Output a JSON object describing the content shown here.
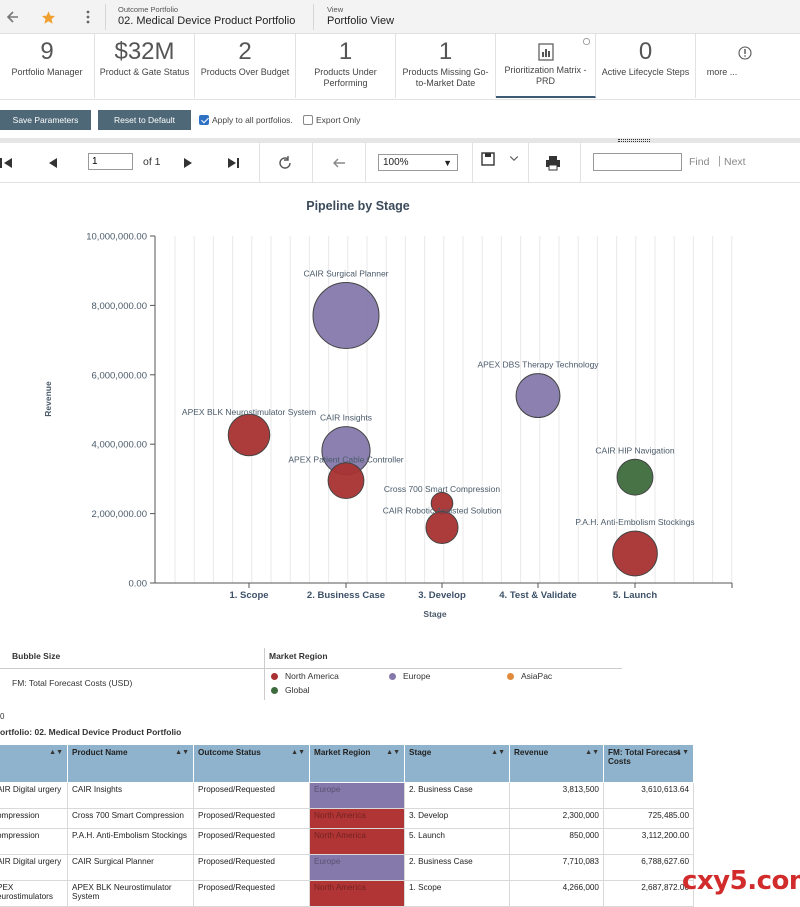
{
  "header": {
    "outcome_label": "Outcome Portfolio",
    "outcome_value": "02. Medical Device Product Portfolio",
    "view_label": "View",
    "view_value": "Portfolio View"
  },
  "kpis": [
    {
      "value": "9",
      "label": "Portfolio Manager"
    },
    {
      "value": "$32M",
      "label": "Product & Gate Status"
    },
    {
      "value": "2",
      "label": "Products Over Budget"
    },
    {
      "value": "1",
      "label": "Products Under Performing"
    },
    {
      "value": "1",
      "label": "Products Missing Go-to-Market Date"
    },
    {
      "value": "",
      "label": "Prioritization Matrix - PRD"
    },
    {
      "value": "0",
      "label": "Active Lifecycle Steps"
    },
    {
      "value": "",
      "label": "more ..."
    }
  ],
  "params": {
    "save_label": "Save Parameters",
    "reset_label": "Reset to Default",
    "apply_all_label": "Apply to all portfolios.",
    "export_only_label": "Export Only"
  },
  "report_toolbar": {
    "page_value": "1",
    "of_label": "of  1",
    "zoom": "100%",
    "find_label": "Find",
    "next_label": "Next"
  },
  "chart_data": {
    "type": "scatter",
    "title": "Pipeline by  Stage",
    "xlabel": "Stage",
    "ylabel": "Revenue",
    "categories": [
      "1. Scope",
      "2. Business Case",
      "3. Develop",
      "4. Test & Validate",
      "5. Launch"
    ],
    "ylim": [
      0,
      10000000
    ],
    "yticks": [
      "0.00",
      "2,000,000.00",
      "4,000,000.00",
      "6,000,000.00",
      "8,000,000.00",
      "10,000,000.00"
    ],
    "size_measure": "FM: Total Forecast Costs (USD)",
    "points": [
      {
        "name": "APEX BLK Neurostimulator System",
        "stage": 1,
        "revenue": 4266000,
        "size": 2687872,
        "region": "North America"
      },
      {
        "name": "CAIR Surgical Planner",
        "stage": 2,
        "revenue": 7710083,
        "size": 6788627.6,
        "region": "Europe"
      },
      {
        "name": "CAIR Insights",
        "stage": 2,
        "revenue": 3813500,
        "size": 3610613.64,
        "region": "Europe"
      },
      {
        "name": "APEX Patient Cable Controller",
        "stage": 2,
        "revenue": 2950000,
        "size": 2000000,
        "region": "North America"
      },
      {
        "name": "Cross 700 Smart Compression",
        "stage": 3,
        "revenue": 2300000,
        "size": 725485,
        "region": "North America"
      },
      {
        "name": "CAIR Robotic Assisted Solution",
        "stage": 3,
        "revenue": 1600000,
        "size": 1600000,
        "region": "North America"
      },
      {
        "name": "APEX DBS Therapy Technology",
        "stage": 4,
        "revenue": 5400000,
        "size": 3000000,
        "region": "Europe"
      },
      {
        "name": "CAIR HIP Navigation",
        "stage": 5,
        "revenue": 3050000,
        "size": 2000000,
        "region": "Global"
      },
      {
        "name": "P.A.H. Anti-Embolism Stockings",
        "stage": 5,
        "revenue": 850000,
        "size": 3112200,
        "region": "North America"
      }
    ],
    "region_colors": {
      "North America": "#a83232",
      "Europe": "#8579ab",
      "AsiaPac": "#e08a3c",
      "Global": "#3d6b3d"
    }
  },
  "legend": {
    "size_header": "Bubble Size",
    "size_value": "FM: Total Forecast Costs (USD)",
    "region_header": "Market Region",
    "regions": [
      "North America",
      "Europe",
      "AsiaPac",
      "Global"
    ]
  },
  "table": {
    "mark": "0",
    "title": "ortfolio: 02. Medical Device Product Portfolio",
    "headers": [
      "",
      "Product Name",
      "Outcome Status",
      "Market Region",
      "Stage",
      "Revenue",
      "FM: Total Forecast Costs"
    ],
    "rows": [
      [
        "AIR Digital urgery",
        "CAIR Insights",
        "Proposed/Requested",
        "Europe",
        "2. Business Case",
        "3,813,500",
        "3,610,613.64"
      ],
      [
        "ompression",
        "Cross 700 Smart Compression",
        "Proposed/Requested",
        "North America",
        "3. Develop",
        "2,300,000",
        "725,485.00"
      ],
      [
        "ompression",
        "P.A.H. Anti-Embolism Stockings",
        "Proposed/Requested",
        "North America",
        "5. Launch",
        "850,000",
        "3,112,200.00"
      ],
      [
        "AIR Digital urgery",
        "CAIR Surgical Planner",
        "Proposed/Requested",
        "Europe",
        "2. Business Case",
        "7,710,083",
        "6,788,627.60"
      ],
      [
        "PEX eurostimulators",
        "APEX BLK Neurostimulator System",
        "Proposed/Requested",
        "North America",
        "1. Scope",
        "4,266,000",
        "2,687,872.00"
      ]
    ]
  },
  "watermark": "cxy5.com"
}
